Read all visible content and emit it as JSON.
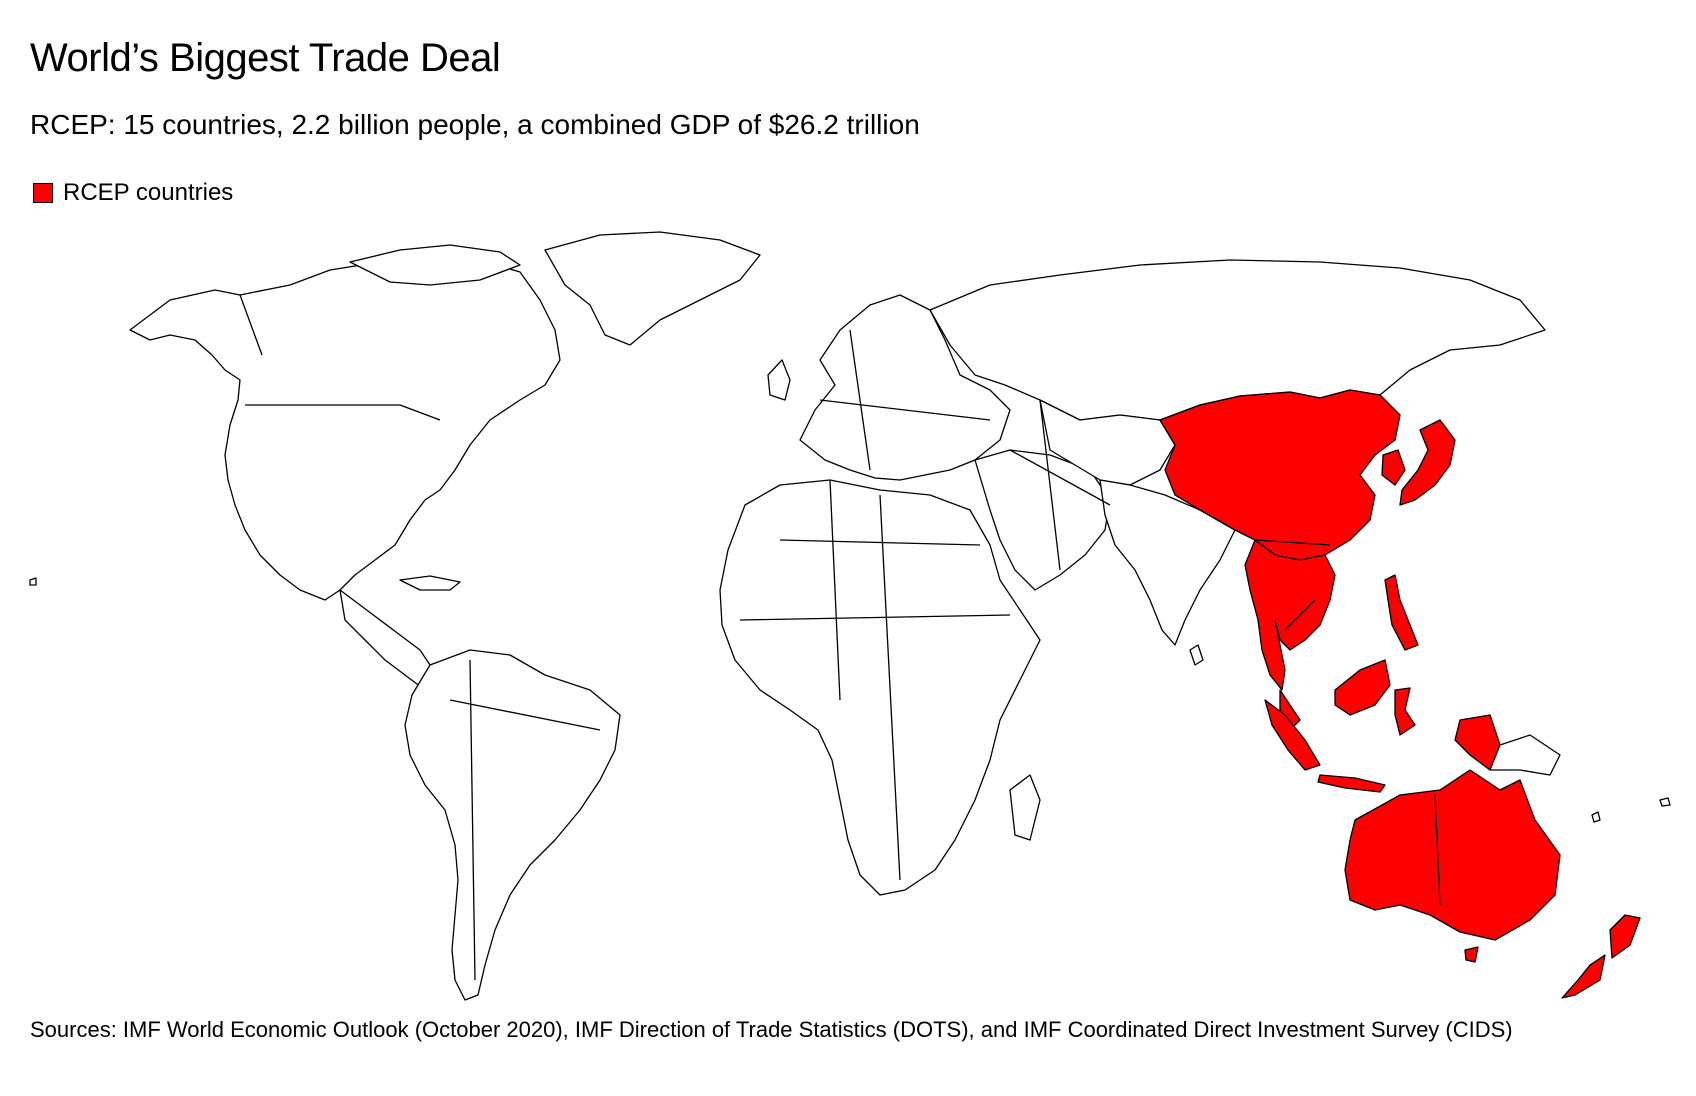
{
  "title": "World’s Biggest Trade Deal",
  "subtitle": "RCEP: 15 countries, 2.2 billion people, a combined GDP of $26.2 trillion",
  "legend": {
    "label": "RCEP countries",
    "color": "#ff0000"
  },
  "map": {
    "type": "choropleth world map",
    "highlight_color": "#ff0000",
    "base_color": "#ffffff",
    "highlighted_regions": [
      "china",
      "japan",
      "south-korea",
      "myanmar",
      "thailand",
      "laos",
      "cambodia",
      "vietnam",
      "malaysia",
      "singapore",
      "indonesia",
      "philippines",
      "brunei",
      "australia",
      "new-zealand"
    ]
  },
  "source": "Sources: IMF World Economic Outlook (October 2020), IMF Direction of Trade Statistics (DOTS), and IMF Coordinated Direct Investment Survey (CIDS)"
}
